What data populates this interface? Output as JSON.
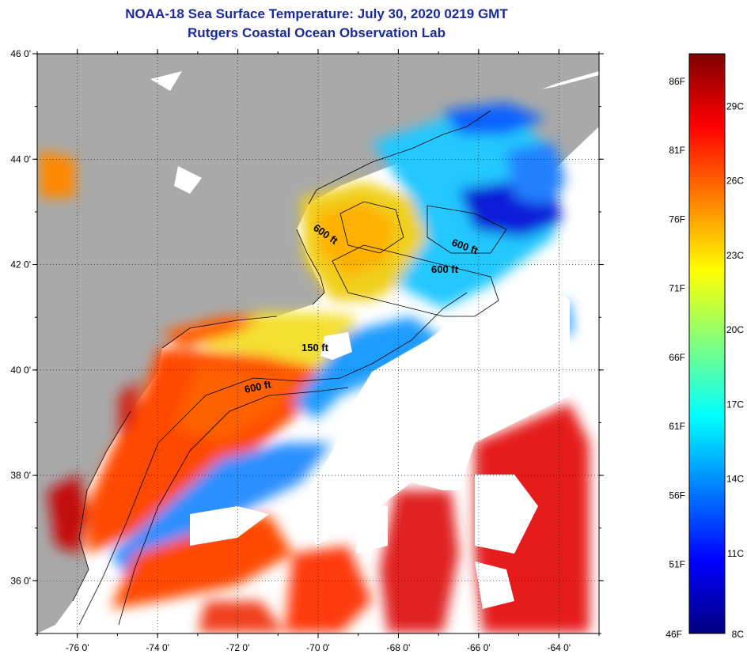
{
  "header": {
    "title": "NOAA-18 Sea Surface Temperature:  July 30, 2020 0219 GMT",
    "subtitle": "Rutgers Coastal Ocean Observation Lab"
  },
  "map": {
    "lon_range": [
      -77,
      -63
    ],
    "lat_range": [
      35,
      46
    ],
    "lon_ticks": [
      "-76 0'",
      "-74 0'",
      "-72 0'",
      "-70 0'",
      "-68 0'",
      "-66 0'",
      "-64 0'"
    ],
    "lat_ticks": [
      "46 0'",
      "44 0'",
      "42 0'",
      "40 0'",
      "38 0'",
      "36 0'"
    ],
    "contour_labels": [
      "600 ft",
      "600 ft",
      "600 ft",
      "150 ft",
      "600 ft"
    ],
    "colors": {
      "land": "#a9a9a9",
      "no_data": "#ffffff",
      "warm": "#ff4a00",
      "hot": "#d41414",
      "mid": "#ffb000",
      "cool": "#23c8ff",
      "cold": "#0a1cd8"
    }
  },
  "colorbar": {
    "min_label_f": "46F",
    "min_label_c": "8C",
    "f_labels": [
      "86F",
      "81F",
      "76F",
      "71F",
      "66F",
      "61F",
      "56F",
      "51F"
    ],
    "c_labels": [
      "29C",
      "26C",
      "23C",
      "20C",
      "17C",
      "14C",
      "11C"
    ],
    "stops": [
      "#00007f",
      "#0000ff",
      "#007fff",
      "#00ffff",
      "#7fff7f",
      "#ffff00",
      "#ff7f00",
      "#ff0000",
      "#7f0000"
    ]
  }
}
